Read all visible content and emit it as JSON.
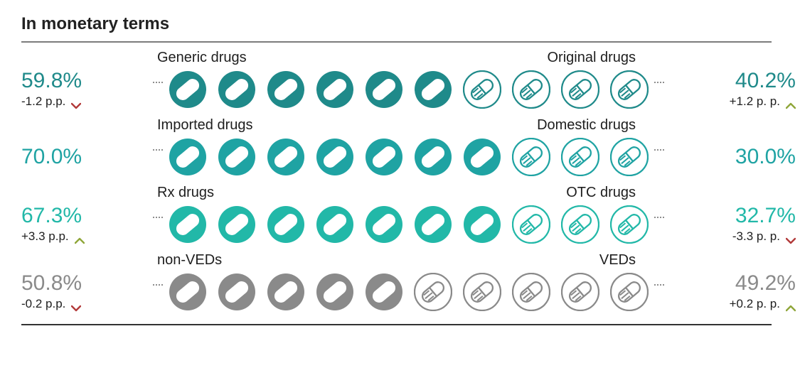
{
  "title": "In monetary terms",
  "colors": {
    "text": "#1e1e1e",
    "divider_top": "#7c7c7c",
    "divider_bottom": "#333333",
    "dot_leader": "#8e8e8e",
    "up_arrow": "#8fa63a",
    "down_arrow": "#b23a3a"
  },
  "icon_total": 10,
  "rows": [
    {
      "id": "generic-original",
      "left_label": "Generic drugs",
      "right_label": "Original drugs",
      "left_pct": "59.8%",
      "left_delta": "-1.2 p.p.",
      "left_dir": "down",
      "right_pct": "40.2%",
      "right_delta": "+1.2 p. p.",
      "right_dir": "up",
      "filled": 6,
      "color_fill": "#1f8a8a",
      "color_outline": "#1f8a8a",
      "pct_color": "#1f8a8a"
    },
    {
      "id": "imported-domestic",
      "left_label": "Imported drugs",
      "right_label": "Domestic drugs",
      "left_pct": "70.0%",
      "left_delta": "",
      "left_dir": "",
      "right_pct": "30.0%",
      "right_delta": "",
      "right_dir": "",
      "filled": 7,
      "color_fill": "#1fa3a3",
      "color_outline": "#1fa3a3",
      "pct_color": "#1fa3a3"
    },
    {
      "id": "rx-otc",
      "left_label": "Rx  drugs",
      "right_label": "OTC drugs",
      "left_pct": "67.3%",
      "left_delta": "+3.3 p.p.",
      "left_dir": "up",
      "right_pct": "32.7%",
      "right_delta": "-3.3 p. p.",
      "right_dir": "down",
      "filled": 7,
      "color_fill": "#22b8a8",
      "color_outline": "#22b8a8",
      "pct_color": "#22b8a8"
    },
    {
      "id": "nonved-ved",
      "left_label": "non-VEDs",
      "right_label": "VEDs",
      "left_pct": "50.8%",
      "left_delta": "-0.2 p.p.",
      "left_dir": "down",
      "right_pct": "49.2%",
      "right_delta": "+0.2 p. p.",
      "right_dir": "up",
      "filled": 5,
      "color_fill": "#8a8a8a",
      "color_outline": "#8a8a8a",
      "pct_color": "#8a8a8a"
    }
  ]
}
